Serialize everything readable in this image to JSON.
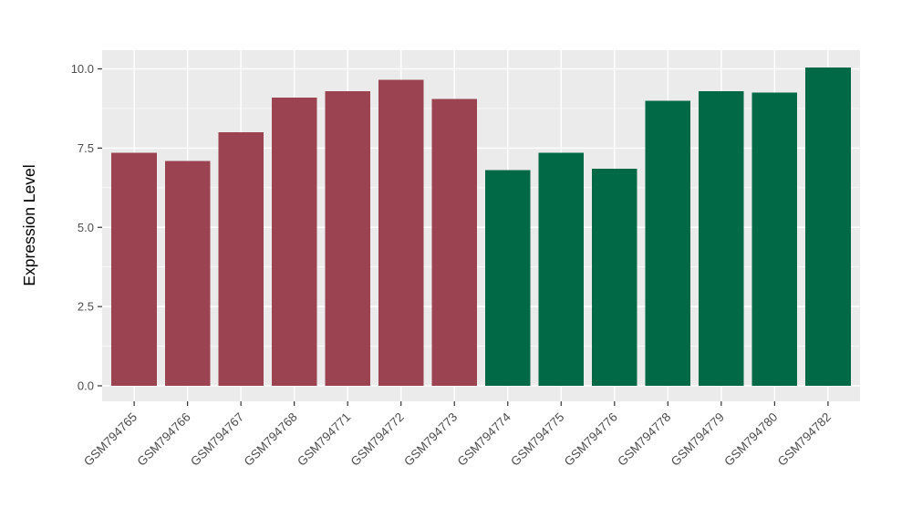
{
  "chart_data": {
    "type": "bar",
    "title": "",
    "xlabel": "",
    "ylabel": "Expression Level",
    "categories": [
      "GSM794765",
      "GSM794766",
      "GSM794767",
      "GSM794768",
      "GSM794771",
      "GSM794772",
      "GSM794773",
      "GSM794774",
      "GSM794775",
      "GSM794776",
      "GSM794778",
      "GSM794779",
      "GSM794780",
      "GSM794782"
    ],
    "values": [
      7.35,
      7.1,
      8.0,
      9.1,
      9.3,
      9.65,
      9.05,
      6.8,
      7.35,
      6.85,
      9.0,
      9.3,
      9.25,
      10.05
    ],
    "groups": [
      0,
      0,
      0,
      0,
      0,
      0,
      0,
      1,
      1,
      1,
      1,
      1,
      1,
      1
    ],
    "group_colors": [
      "#9B4350",
      "#016946"
    ],
    "yticks": [
      0.0,
      2.5,
      5.0,
      7.5,
      10.0
    ],
    "ytick_labels": [
      "0.0",
      "2.5",
      "5.0",
      "7.5",
      "10.0"
    ],
    "ylim": [
      -0.5,
      10.6
    ],
    "grid": "on",
    "legend": "none",
    "panel_bg": "#EBEBEB",
    "grid_color": "#FFFFFF",
    "tick_mark_color": "#333333",
    "tick_label_color": "#4D4D4D",
    "axis_title_color": "#000000"
  }
}
